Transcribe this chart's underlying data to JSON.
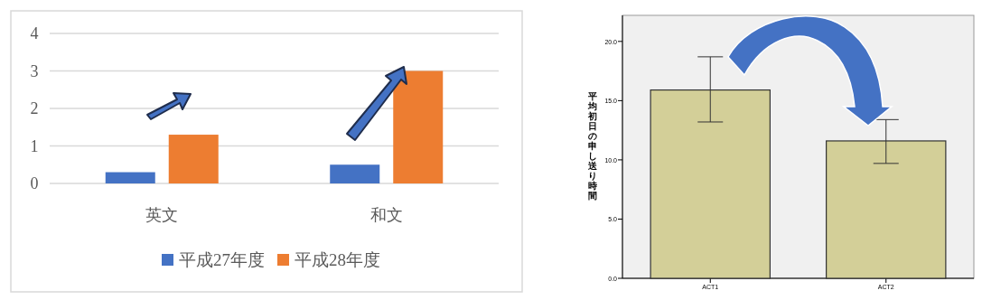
{
  "chart_data": [
    {
      "type": "bar",
      "categories": [
        "英文",
        "和文"
      ],
      "series": [
        {
          "name": "平成27年度",
          "color": "#4472c4",
          "values": [
            0.3,
            0.5
          ]
        },
        {
          "name": "平成28年度",
          "color": "#ed7d31",
          "values": [
            1.3,
            3.0
          ]
        }
      ],
      "ylim": [
        0,
        4
      ],
      "yticks": [
        0,
        1,
        2,
        3,
        4
      ],
      "grid": "y",
      "legend": "bottom"
    },
    {
      "type": "bar",
      "categories": [
        "ACT1",
        "ACT2"
      ],
      "ylabel": "平均初日の申し送り時間",
      "series": [
        {
          "color": "#d3cf98",
          "values": [
            15.9,
            11.6
          ],
          "errors": [
            [
              13.2,
              18.7
            ],
            [
              9.7,
              13.4
            ]
          ]
        }
      ],
      "ylim": [
        0,
        22.2
      ],
      "yticks": [
        {
          "value": 0,
          "label": "0.0"
        },
        {
          "value": 5,
          "label": "5.0"
        },
        {
          "value": 10,
          "label": "10.0"
        },
        {
          "value": 15,
          "label": "15.0"
        },
        {
          "value": 20,
          "label": "20.0"
        }
      ],
      "grid": false,
      "legend": false
    }
  ]
}
